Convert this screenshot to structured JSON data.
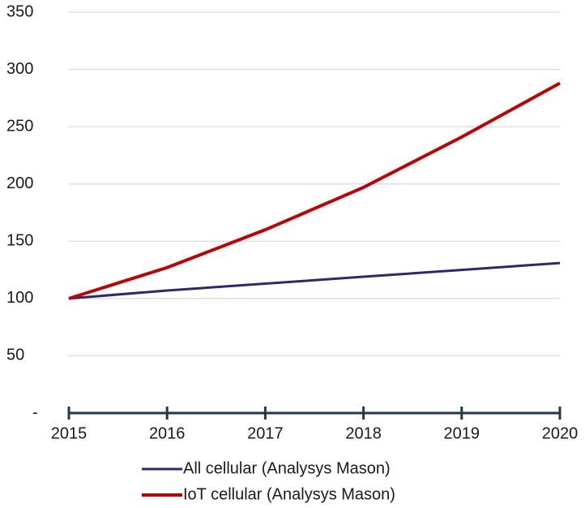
{
  "chart_data": {
    "type": "line",
    "categories": [
      "2015",
      "2016",
      "2017",
      "2018",
      "2019",
      "2020"
    ],
    "series": [
      {
        "name": "All cellular (Analysys Mason)",
        "color": "#2b2870",
        "values": [
          100,
          107,
          113,
          119,
          125,
          131
        ]
      },
      {
        "name": "IoT cellular (Analysys Mason)",
        "color": "#c00000",
        "values": [
          100,
          127,
          160,
          197,
          241,
          288
        ]
      }
    ],
    "ylim": [
      0,
      350
    ],
    "yticks": [
      {
        "value": 0,
        "label": "-"
      },
      50,
      100,
      150,
      200,
      250,
      300,
      350
    ],
    "grid": true,
    "legend": "bottom"
  }
}
